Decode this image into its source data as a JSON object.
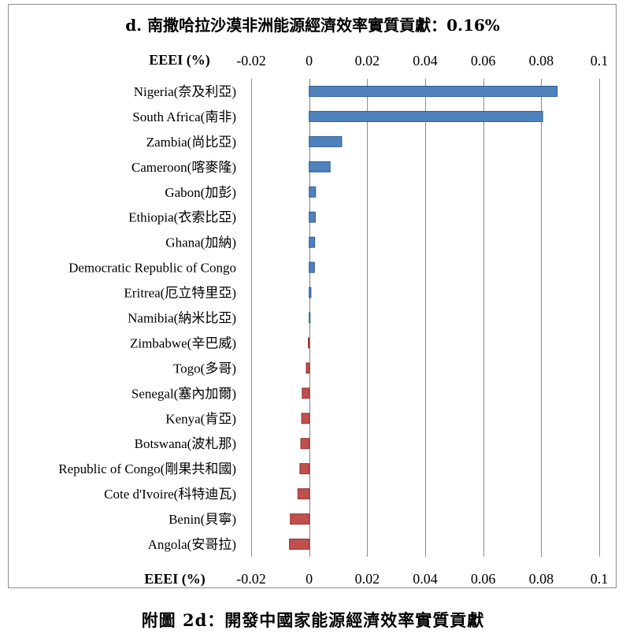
{
  "chart_data": {
    "type": "bar",
    "orientation": "horizontal",
    "title": "d. 南撒哈拉沙漠非洲能源經濟效率實質貢獻：0.16%",
    "xlabel": "EEEI (%)",
    "xlim": [
      -0.02,
      0.1
    ],
    "xticks": [
      "-0.02",
      "0",
      "0.02",
      "0.04",
      "0.06",
      "0.08",
      "0.1"
    ],
    "xtick_values": [
      -0.02,
      0,
      0.02,
      0.04,
      0.06,
      0.08,
      0.1
    ],
    "grid": true,
    "positive_color": "#4f81bd",
    "negative_color": "#c0504d",
    "categories": [
      "Nigeria(奈及利亞)",
      "South Africa(南非)",
      "Zambia(尚比亞)",
      "Cameroon(喀麥隆)",
      "Gabon(加彭)",
      "Ethiopia(衣索比亞)",
      "Ghana(加納)",
      "Democratic Republic of Congo",
      "Eritrea(厄立特里亞)",
      "Namibia(納米比亞)",
      "Zimbabwe(辛巴威)",
      "Togo(多哥)",
      "Senegal(塞內加爾)",
      "Kenya(肯亞)",
      "Botswana(波札那)",
      "Republic of Congo(剛果共和國)",
      "Cote d'Ivoire(科特迪瓦)",
      "Benin(貝寧)",
      "Angola(安哥拉)"
    ],
    "values": [
      0.0855,
      0.0805,
      0.0112,
      0.0072,
      0.0022,
      0.0021,
      0.0019,
      0.0018,
      0.0006,
      0.0003,
      -0.0003,
      -0.001,
      -0.0024,
      -0.0026,
      -0.0029,
      -0.0032,
      -0.0039,
      -0.0065,
      -0.0068
    ]
  },
  "caption": "附圖 2d：開發中國家能源經濟效率實質貢獻"
}
